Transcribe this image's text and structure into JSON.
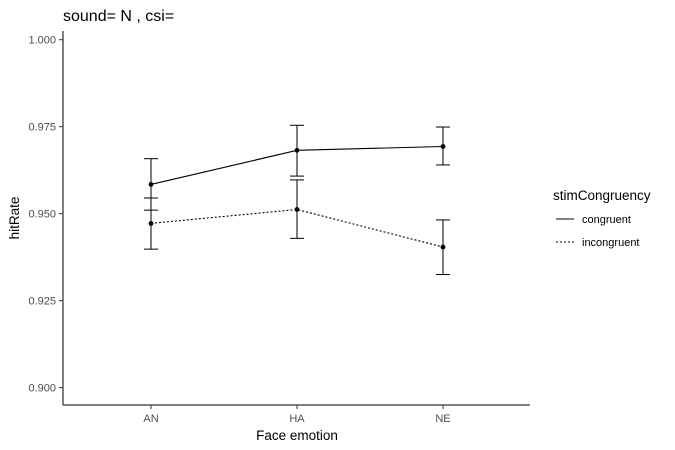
{
  "chart_data": {
    "type": "line",
    "title": "sound= N  , csi=",
    "xlabel": "Face emotion",
    "ylabel": "hitRate",
    "categories": [
      "AN",
      "HA",
      "NE"
    ],
    "ylim": [
      0.895,
      1.0025
    ],
    "yticks": [
      0.9,
      0.925,
      0.95,
      0.975,
      1.0
    ],
    "ytick_labels": [
      "0.900",
      "0.925",
      "0.950",
      "0.975",
      "1.000"
    ],
    "grid": false,
    "legend": {
      "title": "stimCongruency",
      "placement": "right"
    },
    "series": [
      {
        "name": "congruent",
        "linestyle": "solid",
        "color": "#000000",
        "values": [
          0.9584,
          0.9682,
          0.9693
        ],
        "error_lower": [
          0.951,
          0.9608,
          0.964
        ],
        "error_upper": [
          0.9658,
          0.9754,
          0.9749
        ]
      },
      {
        "name": "incongruent",
        "linestyle": "dotted",
        "color": "#000000",
        "values": [
          0.9472,
          0.9512,
          0.9404
        ],
        "error_lower": [
          0.9398,
          0.9429,
          0.9325
        ],
        "error_upper": [
          0.9545,
          0.9597,
          0.9482
        ]
      }
    ]
  }
}
